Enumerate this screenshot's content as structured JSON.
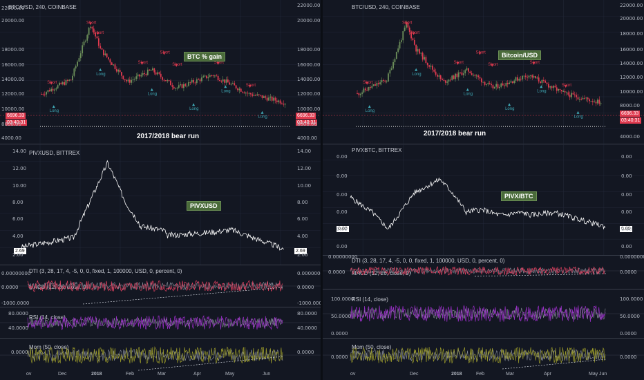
{
  "left": {
    "p1": {
      "title": "BTC/USD, 240, COINBASE",
      "badge": "BTC % gain",
      "note": "2017/2018 bear run",
      "ticks": [
        "22000.00",
        "20000.00",
        "18000.00",
        "16000.00",
        "14000.00",
        "12000.00",
        "10000.00",
        "8000.00",
        "4000.00"
      ],
      "price": "6696.33",
      "time": "03:40:31"
    },
    "p2": {
      "title": "PIVXUSD, BITTREX",
      "badge": "PIVXUSD",
      "ticks": [
        "14.00",
        "12.00",
        "10.00",
        "8.00",
        "6.00",
        "4.00",
        "2.00"
      ],
      "price": "2.69"
    },
    "p3": {
      "title": "DTI (3, 28, 17, 4, -5, 0, 0, fixed, 1, 100000, USD, 0, percent, 0)",
      "sub": "MACD (12, 26, close, 9)",
      "ticks": [
        "0.00000000",
        "0.0000",
        "-1000.0000"
      ]
    },
    "p4": {
      "title": "RSI (14, close)",
      "ticks": [
        "80.0000",
        "40.0000"
      ]
    },
    "p5": {
      "title": "Mom (50, close)",
      "ticks": [
        "0.0000"
      ]
    },
    "xticks": [
      "ov",
      "Dec",
      "2018",
      "Feb",
      "Mar",
      "Apr",
      "May",
      "Jun"
    ]
  },
  "right": {
    "p1": {
      "title": "BTC/USD, 240, COINBASE",
      "badge": "Bitcoin/USD",
      "note": "2017/2018 bear run",
      "ticks": [
        "22000.00",
        "20000.00",
        "18000.00",
        "16000.00",
        "14000.00",
        "12000.00",
        "10000.00",
        "8000.00",
        "4000.00"
      ],
      "price": "6696.33",
      "time": "03:40:31"
    },
    "p2": {
      "title": "PIVXBTC, BITTREX",
      "badge": "PIVX/BTC",
      "ticks": [
        "0.00",
        "0.00",
        "0.00",
        "0.00",
        "0.00",
        "0.00"
      ],
      "price": "0.00"
    },
    "p3": {
      "title": "DTI (3, 28, 17, 4, -5, 0, 0, fixed, 1, 100000, USD, 0, percent, 0)",
      "sub": "MACD (12, 26, close, 9)",
      "ticks": [
        "0.00000000",
        "0.0000"
      ]
    },
    "p4": {
      "title": "RSI (14, close)",
      "ticks": [
        "100.0000",
        "50.0000",
        "0.0000"
      ]
    },
    "p5": {
      "title": "Mom (50, close)",
      "ticks": [
        "0.0000"
      ]
    },
    "xticks": [
      "ov",
      "Dec",
      "2018",
      "Feb",
      "Mar",
      "Apr",
      "May",
      "Jun"
    ]
  },
  "signals": {
    "short": "Short",
    "long": "Long"
  },
  "colors": {
    "bg": "#131722",
    "up": "#6c8f5a",
    "down": "#e03a4f",
    "line": "#ffffff",
    "rsi": "#9b2ec9",
    "mom": "#9a9a2a",
    "macd": "#e04060"
  }
}
